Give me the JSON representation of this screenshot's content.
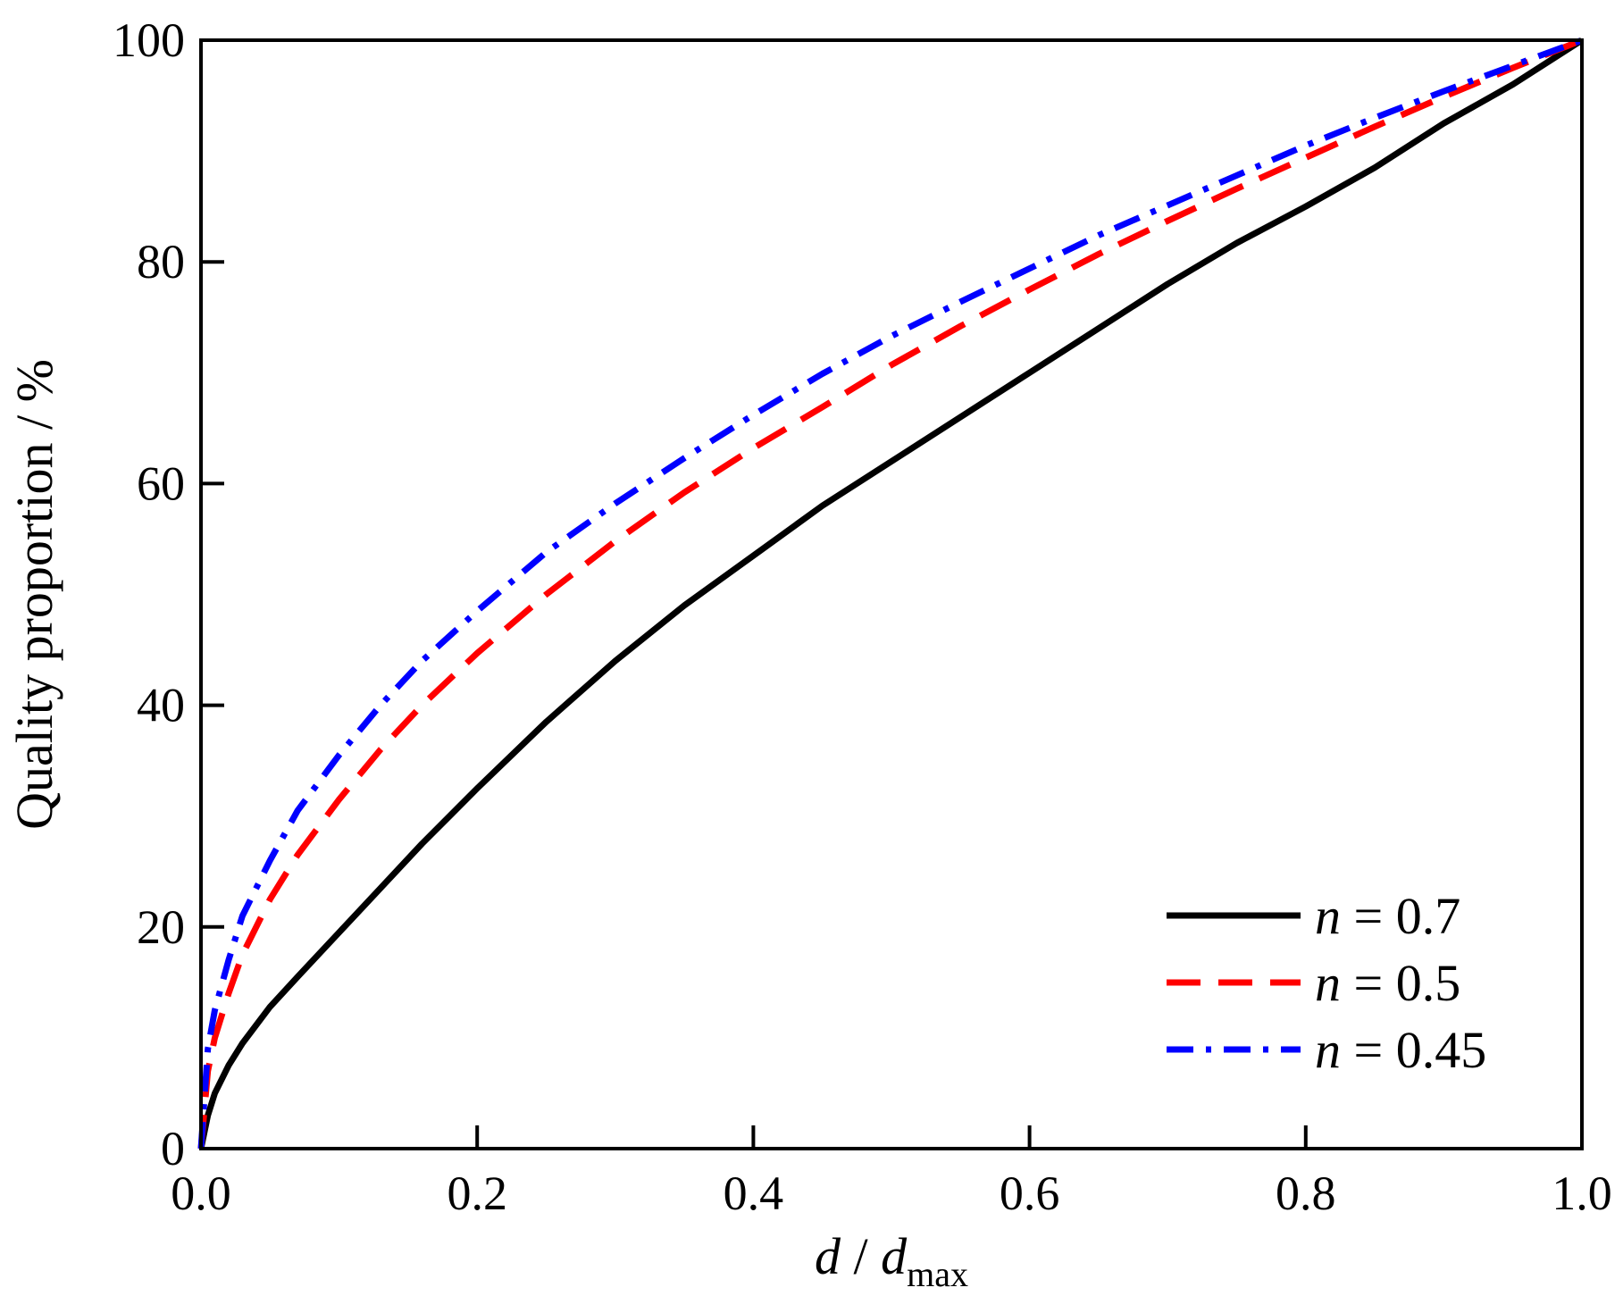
{
  "chart_data": {
    "type": "line",
    "title": "",
    "xlabel": {
      "main": "d",
      "separator": " / ",
      "denominator": "d",
      "subscript": "max"
    },
    "ylabel": "Quality proportion / %",
    "xlim": [
      0.0,
      1.0
    ],
    "ylim": [
      0,
      100
    ],
    "xticks": [
      "0.0",
      "0.2",
      "0.4",
      "0.6",
      "0.8",
      "1.0"
    ],
    "yticks": [
      "0",
      "20",
      "40",
      "60",
      "80",
      "100"
    ],
    "grid": false,
    "legend_position": "bottom-right",
    "series": [
      {
        "name": "n = 0.7",
        "legend_var": "n",
        "legend_rest": " = 0.7",
        "color": "#000000",
        "dash": "solid",
        "x": [
          0.0,
          0.005,
          0.01,
          0.02,
          0.03,
          0.05,
          0.07,
          0.1,
          0.13,
          0.16,
          0.2,
          0.25,
          0.3,
          0.35,
          0.4,
          0.45,
          0.5,
          0.55,
          0.6,
          0.65,
          0.7,
          0.75,
          0.8,
          0.85,
          0.9,
          0.95,
          1.0
        ],
        "values": [
          0,
          3,
          5,
          7.5,
          9.5,
          12.8,
          15.5,
          19.5,
          23.5,
          27.5,
          32.5,
          38.5,
          44,
          49,
          53.5,
          58,
          62,
          66,
          70,
          74,
          78,
          81.7,
          85,
          88.5,
          92.5,
          96,
          100
        ]
      },
      {
        "name": "n = 0.5",
        "legend_var": "n",
        "legend_rest": " = 0.5",
        "color": "#ff0000",
        "dash": "dashed",
        "x": [
          0.0,
          0.005,
          0.01,
          0.02,
          0.03,
          0.05,
          0.07,
          0.1,
          0.13,
          0.16,
          0.2,
          0.25,
          0.3,
          0.35,
          0.4,
          0.45,
          0.5,
          0.55,
          0.6,
          0.65,
          0.7,
          0.75,
          0.8,
          0.85,
          0.9,
          0.95,
          1.0
        ],
        "values": [
          0,
          7,
          10,
          14,
          17.5,
          22.5,
          26.5,
          31.5,
          36,
          40,
          44.7,
          50,
          54.8,
          59.2,
          63.2,
          66.9,
          70.7,
          74.2,
          77.5,
          80.7,
          83.7,
          86.6,
          89.4,
          92.2,
          94.9,
          97.5,
          100
        ]
      },
      {
        "name": "n = 0.45",
        "legend_var": "n",
        "legend_rest": " = 0.45",
        "color": "#0000ff",
        "dash": "dashdot",
        "x": [
          0.0,
          0.005,
          0.01,
          0.02,
          0.03,
          0.05,
          0.07,
          0.1,
          0.13,
          0.16,
          0.2,
          0.25,
          0.3,
          0.35,
          0.4,
          0.45,
          0.5,
          0.55,
          0.6,
          0.65,
          0.7,
          0.75,
          0.8,
          0.85,
          0.9,
          0.95,
          1.0
        ],
        "values": [
          0,
          9,
          12.5,
          17,
          21,
          26,
          30.5,
          35.5,
          40,
          44,
          48.5,
          53.8,
          58.2,
          62.3,
          66.2,
          69.9,
          73.3,
          76.4,
          79.4,
          82.4,
          85.1,
          87.8,
          90.5,
          93,
          95.4,
          97.7,
          100
        ]
      }
    ]
  }
}
